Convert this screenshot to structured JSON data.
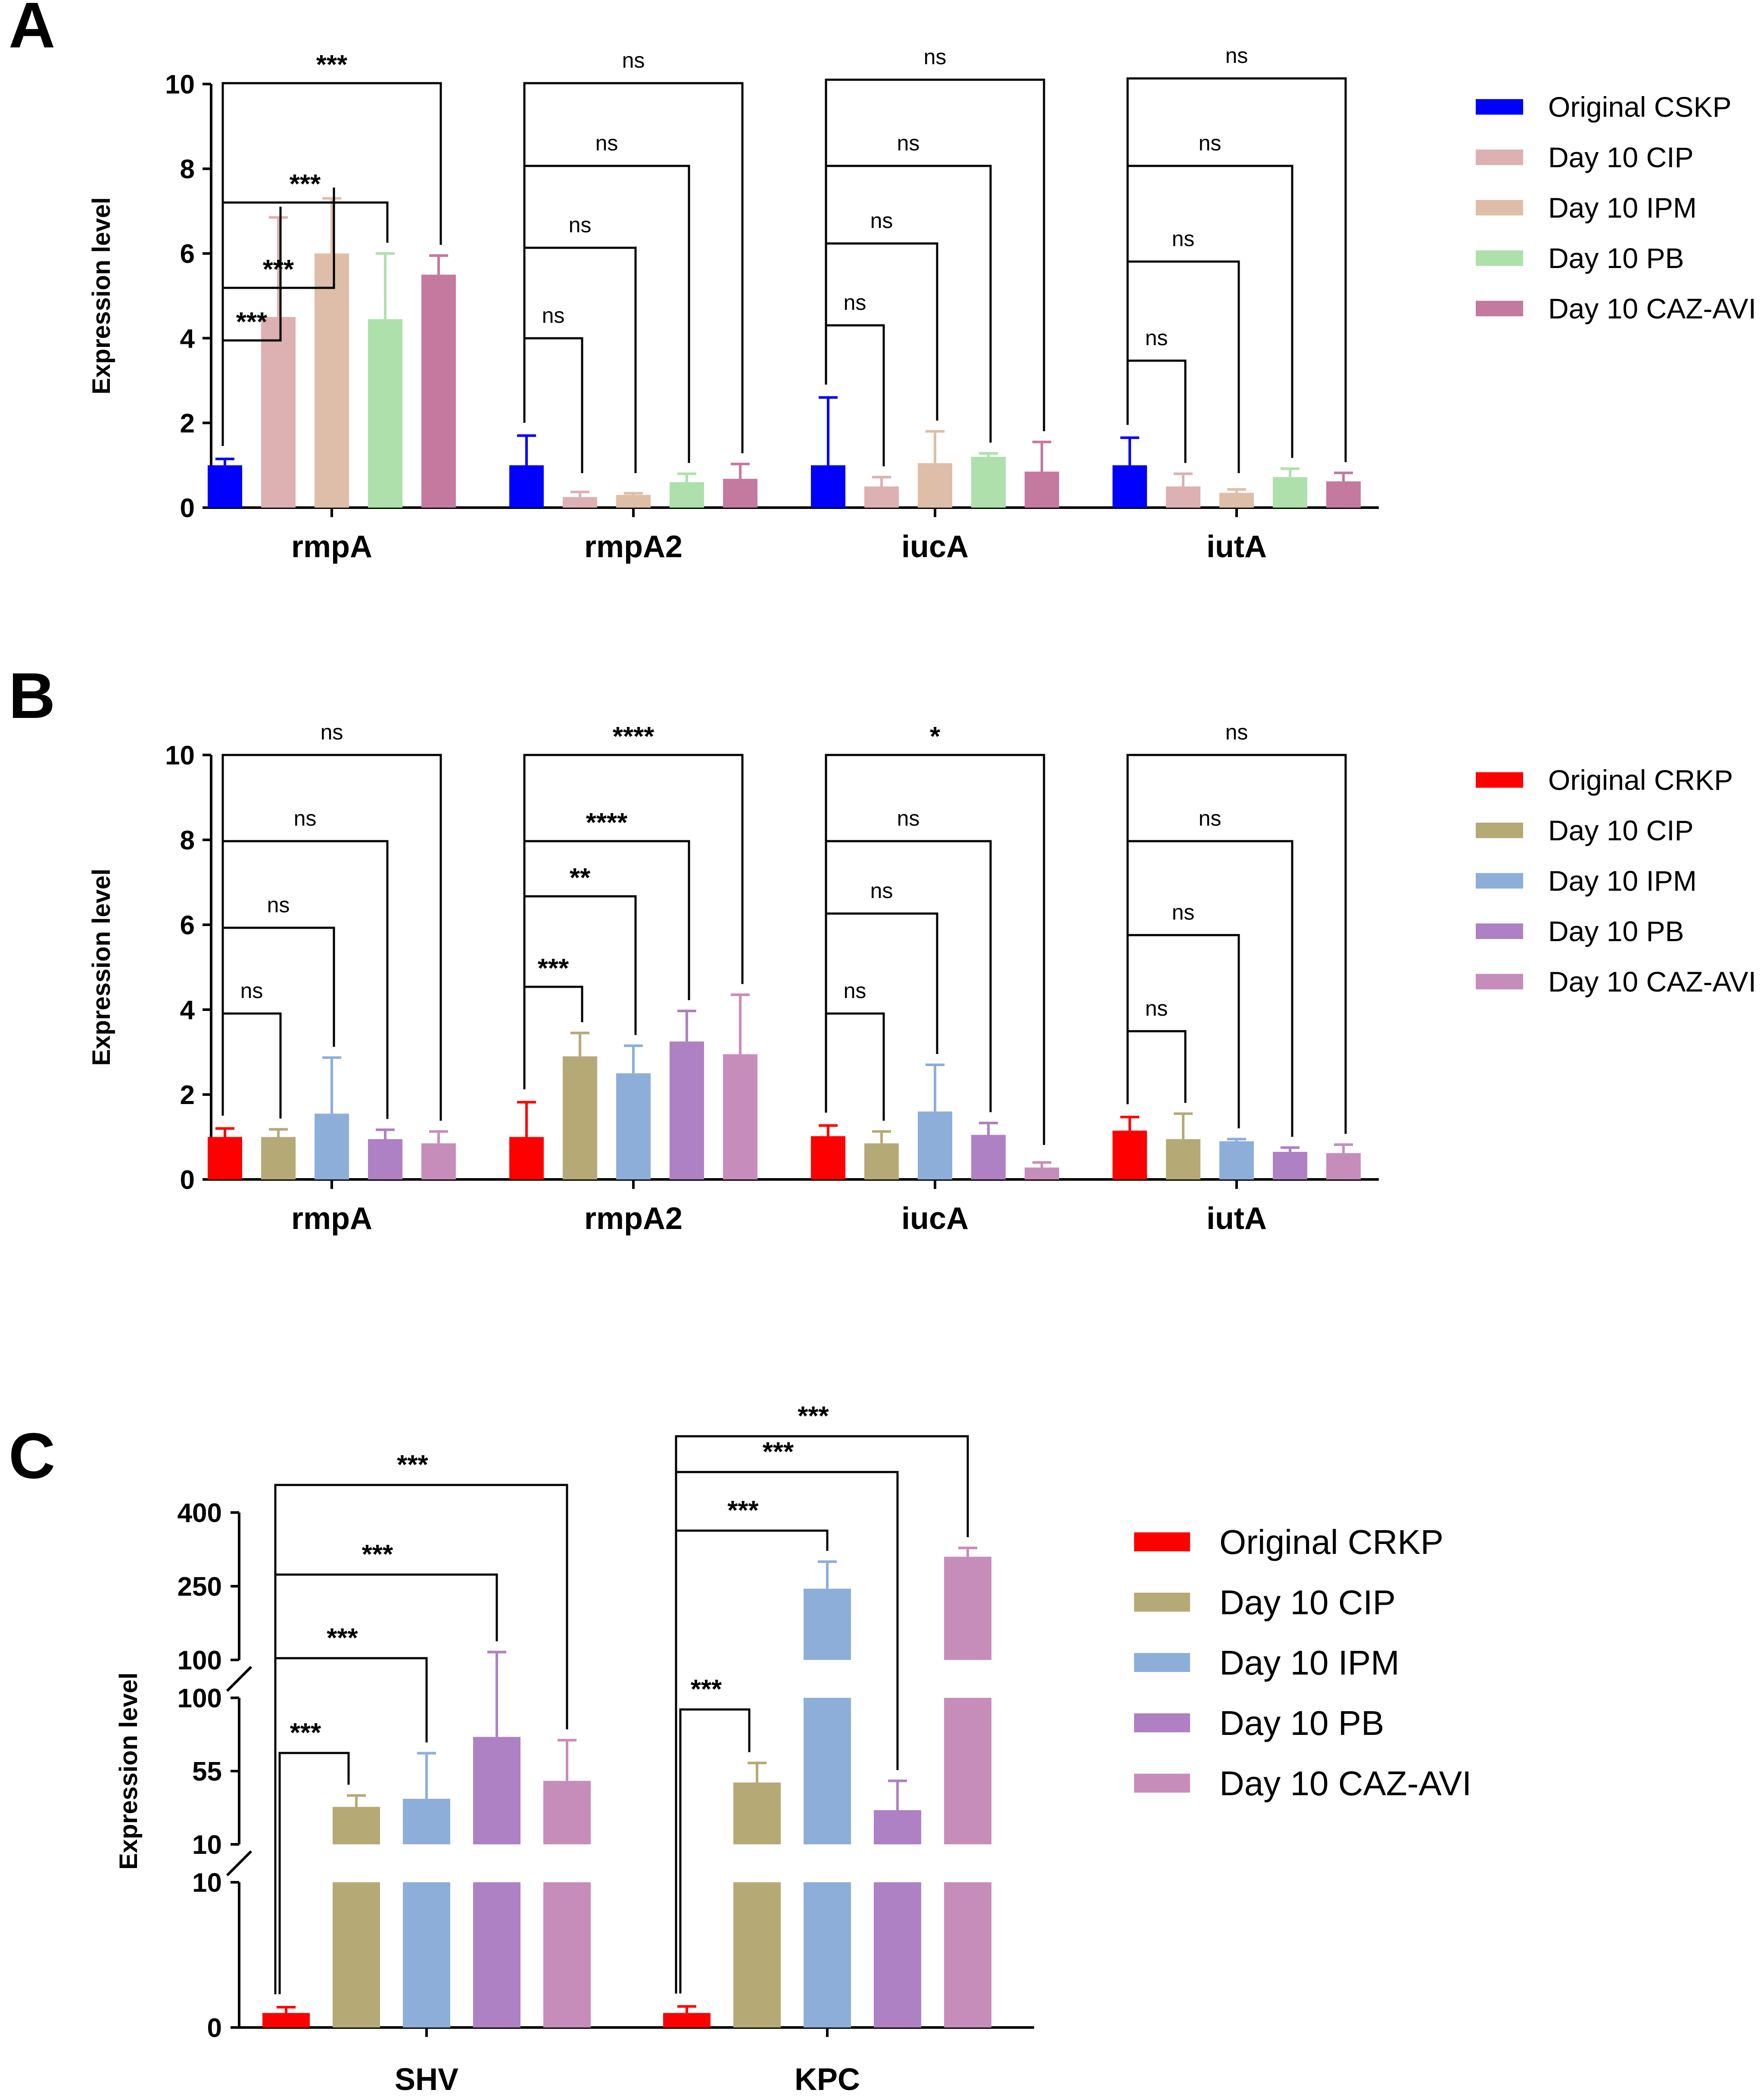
{
  "chart_data": [
    {
      "panel": "A",
      "type": "bar",
      "ylabel": "Expression level",
      "ylim": [
        0,
        10
      ],
      "yticks": [
        0,
        2,
        4,
        6,
        8,
        10
      ],
      "categories": [
        "rmpA",
        "rmpA2",
        "iucA",
        "iutA"
      ],
      "series": [
        {
          "name": "Original CSKP",
          "color": "#0000FF",
          "values": [
            1.0,
            1.0,
            1.0,
            1.0
          ],
          "errors": [
            0.15,
            0.7,
            1.6,
            0.65
          ]
        },
        {
          "name": "Day 10 CIP",
          "color": "#DDB0B2",
          "values": [
            4.5,
            0.25,
            0.5,
            0.5
          ],
          "errors": [
            2.35,
            0.12,
            0.22,
            0.3
          ]
        },
        {
          "name": "Day 10 IPM",
          "color": "#DEBEA8",
          "values": [
            6.0,
            0.3,
            1.05,
            0.35
          ],
          "errors": [
            1.3,
            0.04,
            0.75,
            0.08
          ]
        },
        {
          "name": "Day 10 PB",
          "color": "#AEE0AC",
          "values": [
            4.45,
            0.6,
            1.2,
            0.72
          ],
          "errors": [
            1.55,
            0.2,
            0.08,
            0.2
          ]
        },
        {
          "name": "Day 10 CAZ-AVI",
          "color": "#C4799F",
          "values": [
            5.5,
            0.68,
            0.85,
            0.62
          ],
          "errors": [
            0.45,
            0.35,
            0.7,
            0.2
          ]
        }
      ],
      "annotations": [
        [
          "***",
          "***",
          "***",
          "***"
        ],
        [
          "ns",
          "ns",
          "ns",
          "ns"
        ],
        [
          "ns",
          "ns",
          "ns",
          "ns"
        ],
        [
          "ns",
          "ns",
          "ns",
          "ns"
        ]
      ]
    },
    {
      "panel": "B",
      "type": "bar",
      "ylabel": "Expression level",
      "ylim": [
        0,
        10
      ],
      "yticks": [
        0,
        2,
        4,
        6,
        8,
        10
      ],
      "categories": [
        "rmpA",
        "rmpA2",
        "iucA",
        "iutA"
      ],
      "series": [
        {
          "name": "Original CRKP",
          "color": "#FF0000",
          "values": [
            1.0,
            1.0,
            1.02,
            1.15
          ],
          "errors": [
            0.2,
            0.82,
            0.25,
            0.32
          ]
        },
        {
          "name": "Day 10 CIP",
          "color": "#B5AA76",
          "values": [
            1.0,
            2.9,
            0.85,
            0.95
          ],
          "errors": [
            0.18,
            0.55,
            0.28,
            0.6
          ]
        },
        {
          "name": "Day 10 IPM",
          "color": "#8EAEDA",
          "values": [
            1.55,
            2.5,
            1.6,
            0.9
          ],
          "errors": [
            1.32,
            0.65,
            1.1,
            0.05
          ]
        },
        {
          "name": "Day 10 PB",
          "color": "#AE80C4",
          "values": [
            0.95,
            3.25,
            1.05,
            0.65
          ],
          "errors": [
            0.22,
            0.72,
            0.28,
            0.1
          ]
        },
        {
          "name": "Day 10 CAZ-AVI",
          "color": "#C78DBA",
          "values": [
            0.85,
            2.95,
            0.28,
            0.62
          ],
          "errors": [
            0.28,
            1.4,
            0.12,
            0.2
          ]
        }
      ],
      "annotations": [
        [
          "ns",
          "ns",
          "ns",
          "ns"
        ],
        [
          "***",
          "**",
          "****",
          "****"
        ],
        [
          "ns",
          "ns",
          "ns",
          "*"
        ],
        [
          "ns",
          "ns",
          "ns",
          "ns"
        ]
      ]
    },
    {
      "panel": "C",
      "type": "bar",
      "ylabel": "Expression level",
      "broken_axis": true,
      "yticks": [
        "0",
        "10",
        "10",
        "55",
        "100",
        "100",
        "250",
        "400"
      ],
      "categories": [
        "SHV",
        "KPC"
      ],
      "series": [
        {
          "name": "Original CRKP",
          "color": "#FF0000",
          "values": [
            1.0,
            1.0
          ],
          "errors": [
            0.4,
            0.45
          ]
        },
        {
          "name": "Day 10 CIP",
          "color": "#B5AA76",
          "values": [
            33,
            48
          ],
          "errors": [
            7,
            12
          ]
        },
        {
          "name": "Day 10 IPM",
          "color": "#8EAEDA",
          "values": [
            38,
            245
          ],
          "errors": [
            28,
            55
          ]
        },
        {
          "name": "Day 10 PB",
          "color": "#AE80C4",
          "values": [
            76,
            31
          ],
          "errors": [
            40,
            18
          ]
        },
        {
          "name": "Day 10 CAZ-AVI",
          "color": "#C78DBA",
          "values": [
            49,
            310
          ],
          "errors": [
            25,
            18
          ]
        }
      ],
      "annotations": [
        [
          "***",
          "***",
          "***",
          "***"
        ],
        [
          "***",
          "***",
          "***",
          "***"
        ]
      ]
    }
  ]
}
